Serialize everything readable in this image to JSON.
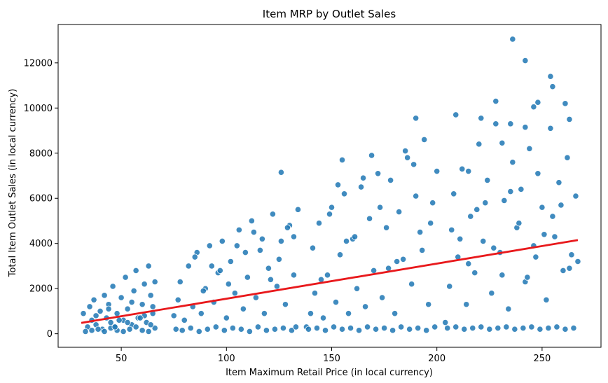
{
  "chart_data": {
    "type": "scatter",
    "title": "Item MRP by Outlet Sales",
    "xlabel": "Item Maximum Retail Price (in local currency)",
    "ylabel": "Total Item Outlet Sales (in local currency)",
    "xlim": [
      20,
      278
    ],
    "ylim": [
      -600,
      13700
    ],
    "x_ticks": [
      {
        "value": 50,
        "label": "50"
      },
      {
        "value": 100,
        "label": "100"
      },
      {
        "value": 150,
        "label": "150"
      },
      {
        "value": 200,
        "label": "200"
      },
      {
        "value": 250,
        "label": "250"
      }
    ],
    "y_ticks": [
      {
        "value": 0,
        "label": "0"
      },
      {
        "value": 2000,
        "label": "2000"
      },
      {
        "value": 4000,
        "label": "4000"
      },
      {
        "value": 6000,
        "label": "6000"
      },
      {
        "value": 8000,
        "label": "8000"
      },
      {
        "value": 10000,
        "label": "10000"
      },
      {
        "value": 12000,
        "label": "12000"
      }
    ],
    "grid": false,
    "point_color": "#1f77b4",
    "trend_color": "#e8191c",
    "trend_line": {
      "x": [
        31,
        267
      ],
      "y": [
        480,
        4150
      ]
    },
    "series": [
      {
        "x": [
          32,
          34,
          35,
          36,
          37,
          38,
          40,
          41,
          42,
          43,
          44,
          45,
          46,
          47,
          48,
          50,
          51,
          52,
          53,
          55,
          56,
          57,
          58,
          60,
          61,
          62,
          63,
          64,
          65,
          66,
          33,
          36,
          39,
          42,
          45,
          48,
          51,
          54,
          57,
          60,
          63,
          66,
          38,
          44,
          49,
          55,
          61,
          65,
          47,
          53,
          59,
          64,
          75,
          77,
          78,
          80,
          82,
          84,
          86,
          88,
          90,
          92,
          94,
          96,
          98,
          100,
          102,
          104,
          106,
          108,
          110,
          112,
          114,
          116,
          118,
          120,
          122,
          124,
          126,
          128,
          130,
          132,
          134,
          76,
          79,
          83,
          87,
          91,
          95,
          99,
          103,
          107,
          111,
          115,
          119,
          123,
          127,
          131,
          133,
          85,
          93,
          101,
          109,
          117,
          125,
          132,
          89,
          97,
          105,
          113,
          121,
          129,
          138,
          140,
          142,
          144,
          146,
          148,
          150,
          152,
          154,
          156,
          158,
          160,
          162,
          164,
          166,
          168,
          170,
          172,
          174,
          176,
          178,
          180,
          182,
          184,
          186,
          188,
          190,
          192,
          194,
          196,
          198,
          200,
          139,
          143,
          147,
          151,
          155,
          159,
          163,
          167,
          171,
          175,
          179,
          183,
          187,
          191,
          195,
          199,
          141,
          149,
          157,
          165,
          173,
          181,
          189,
          197,
          145,
          153,
          161,
          169,
          177,
          185,
          193,
          204,
          206,
          208,
          210,
          212,
          214,
          216,
          218,
          220,
          222,
          224,
          226,
          228,
          230,
          232,
          234,
          236,
          238,
          240,
          242,
          244,
          246,
          248,
          250,
          252,
          254,
          256,
          258,
          260,
          262,
          264,
          266,
          205,
          209,
          213,
          217,
          221,
          225,
          229,
          233,
          237,
          241,
          245,
          249,
          253,
          257,
          261,
          265,
          207,
          215,
          223,
          231,
          239,
          247,
          255,
          263,
          211,
          219,
          227,
          235,
          243,
          251,
          259,
          267,
          126,
          155,
          190,
          209,
          228,
          236,
          242,
          248,
          254,
          255,
          242,
          235,
          246,
          261,
          263,
          231,
          215,
          221
        ],
        "y": [
          900,
          300,
          1200,
          600,
          1500,
          400,
          1000,
          200,
          1700,
          700,
          1300,
          500,
          2100,
          300,
          900,
          1600,
          600,
          2500,
          1100,
          400,
          1900,
          2800,
          700,
          1300,
          2200,
          500,
          3000,
          1700,
          900,
          2300,
          100,
          150,
          200,
          100,
          250,
          150,
          100,
          200,
          300,
          150,
          100,
          250,
          800,
          1100,
          600,
          1400,
          800,
          1200,
          300,
          500,
          700,
          400,
          800,
          1500,
          2300,
          600,
          3000,
          1200,
          3600,
          900,
          2000,
          3900,
          1400,
          2700,
          4100,
          700,
          3200,
          1800,
          4600,
          1100,
          2500,
          5000,
          1600,
          3700,
          900,
          2900,
          5300,
          2100,
          4100,
          1300,
          4800,
          2600,
          5500,
          200,
          150,
          250,
          100,
          200,
          300,
          150,
          250,
          200,
          100,
          300,
          150,
          200,
          250,
          150,
          300,
          3400,
          3000,
          2200,
          3600,
          4200,
          3300,
          4300,
          1900,
          2800,
          3900,
          4500,
          2400,
          4700,
          300,
          900,
          1800,
          4900,
          700,
          2600,
          5600,
          1400,
          3500,
          6200,
          900,
          4200,
          2000,
          6500,
          1200,
          5100,
          2800,
          7100,
          1600,
          4700,
          6800,
          900,
          5400,
          3300,
          7800,
          2200,
          6100,
          4500,
          8600,
          1300,
          5800,
          7200,
          200,
          250,
          150,
          300,
          200,
          250,
          150,
          300,
          200,
          250,
          150,
          300,
          200,
          250,
          150,
          300,
          3800,
          5300,
          4100,
          6900,
          5600,
          3200,
          7500,
          4900,
          2400,
          6600,
          4300,
          7900,
          2900,
          8100,
          3700,
          500,
          2100,
          6200,
          3400,
          7300,
          1300,
          5200,
          2700,
          8400,
          4100,
          6800,
          1800,
          9300,
          3600,
          5900,
          1100,
          7600,
          4700,
          6400,
          2300,
          8200,
          3900,
          7100,
          5600,
          1500,
          9100,
          4300,
          6700,
          2800,
          7800,
          3500,
          6100,
          250,
          300,
          200,
          250,
          300,
          200,
          250,
          300,
          200,
          250,
          300,
          200,
          250,
          300,
          200,
          250,
          4600,
          3100,
          5800,
          2600,
          4900,
          3400,
          5200,
          2900,
          4200,
          5500,
          3800,
          6300,
          2500,
          4400,
          5700,
          3200,
          7150,
          7700,
          9550,
          9700,
          10300,
          13050,
          12100,
          10250,
          11400,
          10950,
          9150,
          9300,
          10050,
          10200,
          9500,
          8450,
          7200,
          9550
        ]
      }
    ]
  }
}
